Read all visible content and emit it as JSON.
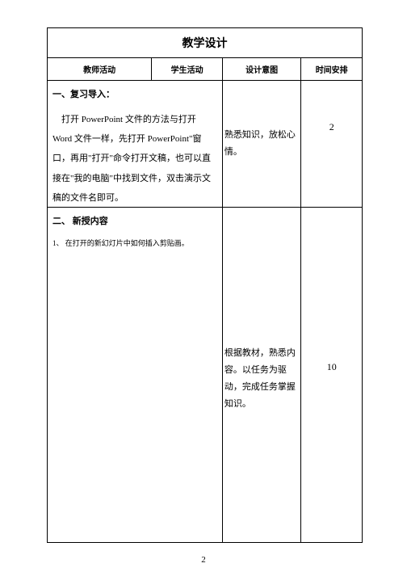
{
  "title": "教学设计",
  "headers": {
    "teacher": "教师活动",
    "student": "学生活动",
    "intent": "设计意图",
    "time": "时间安排"
  },
  "rows": [
    {
      "heading": "一、复习导入：",
      "paragraph": "打开 PowerPoint 文件的方法与打开 Word 文件一样，先打开 PowerPoint\"窗口，再用\"打开\"命令打开文稿，也可以直接在\"我的电脑\"中找到文件，双击演示文稿的文件名即可。",
      "intent": "熟悉知识，放松心情。",
      "time": "2"
    },
    {
      "heading": "二、 新授内容",
      "sub_note": "1、 在打开的新幻灯片中如何插入剪贴画。",
      "intent": "根据教材，熟悉内容。以任务为驱动，完成任务掌握知识。",
      "time": "10"
    }
  ],
  "page_number": "2"
}
